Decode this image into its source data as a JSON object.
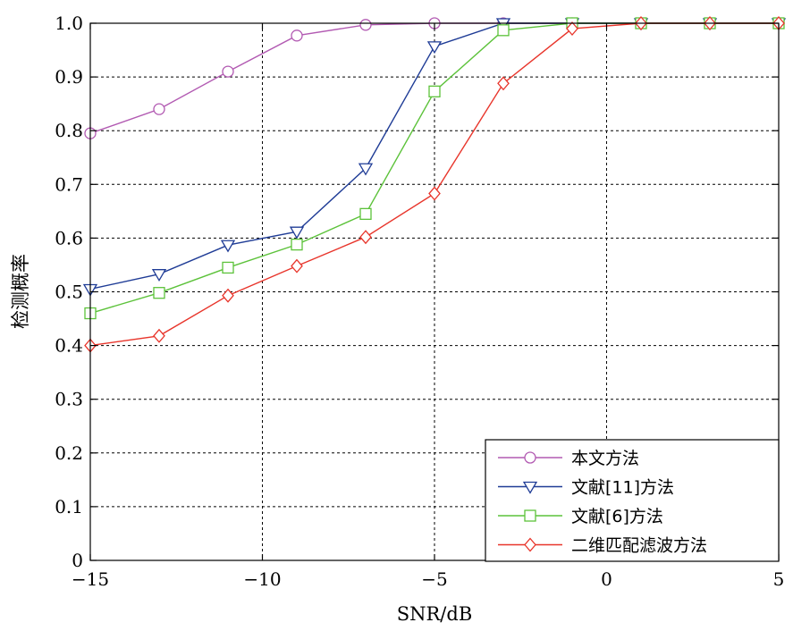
{
  "chart_data": {
    "type": "line",
    "xlabel": "SNR/dB",
    "ylabel": "检测概率",
    "xlim": [
      -15,
      5
    ],
    "ylim": [
      0,
      1
    ],
    "xticks": [
      -15,
      -10,
      -5,
      0,
      5
    ],
    "xtick_labels": [
      "−15",
      "−10",
      "−5",
      "0",
      "5"
    ],
    "yticks": [
      0,
      0.1,
      0.2,
      0.3,
      0.4,
      0.5,
      0.6,
      0.7,
      0.8,
      0.9,
      1.0
    ],
    "ytick_labels": [
      "0",
      "0.1",
      "0.2",
      "0.3",
      "0.4",
      "0.5",
      "0.6",
      "0.7",
      "0.8",
      "0.9",
      "1.0"
    ],
    "grid": true,
    "legend_position": "bottom-right",
    "x": [
      -15,
      -13,
      -11,
      -9,
      -7,
      -5,
      -3,
      -1,
      1,
      3,
      5
    ],
    "series": [
      {
        "name": "本文方法",
        "marker": "circle",
        "color": "#b25ab2",
        "values": [
          0.795,
          0.84,
          0.91,
          0.977,
          0.997,
          1.0,
          1.0,
          1.0,
          1.0,
          1.0,
          1.0
        ]
      },
      {
        "name": "文献[11]方法",
        "marker": "triangle-down",
        "color": "#1f3c96",
        "values": [
          0.505,
          0.533,
          0.587,
          0.612,
          0.73,
          0.957,
          1.0,
          1.0,
          1.0,
          1.0,
          1.0
        ]
      },
      {
        "name": "文献[6]方法",
        "marker": "square",
        "color": "#5cc23a",
        "values": [
          0.46,
          0.498,
          0.545,
          0.588,
          0.645,
          0.873,
          0.987,
          1.0,
          1.0,
          1.0,
          1.0
        ]
      },
      {
        "name": "二维匹配滤波方法",
        "marker": "diamond",
        "color": "#e8352b",
        "values": [
          0.4,
          0.418,
          0.493,
          0.548,
          0.602,
          0.683,
          0.888,
          0.99,
          1.0,
          1.0,
          1.0
        ]
      }
    ]
  }
}
